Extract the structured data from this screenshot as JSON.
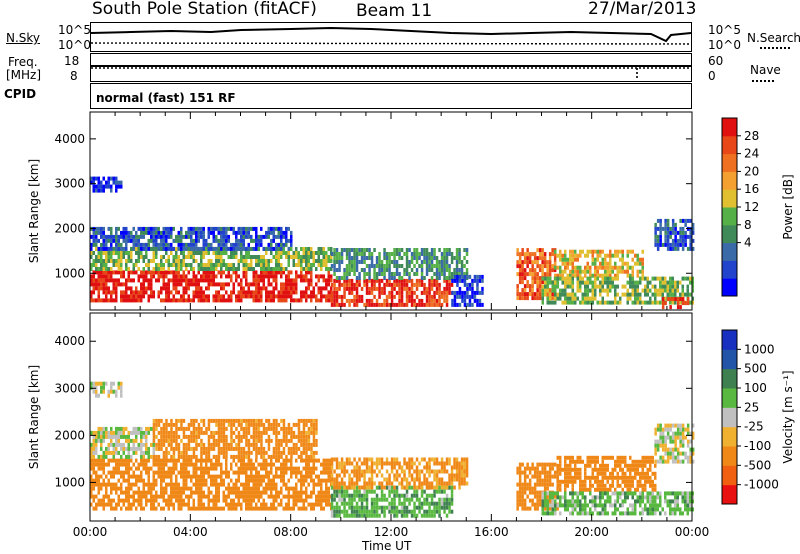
{
  "header": {
    "station": "South Pole Station (fitACF)",
    "beam": "Beam 11",
    "date": "27/Mar/2013"
  },
  "summary_panels": {
    "nsky_label": "N.Sky",
    "nsky_ticks": [
      "10^5",
      "10^0"
    ],
    "nsearch_label": "N.Search",
    "nsearch_ticks": [
      "10^5",
      "10^0"
    ],
    "freq_label_1": "Freq.",
    "freq_label_2": "[MHz]",
    "freq_ticks": [
      "18",
      "8"
    ],
    "nave_label": "Nave",
    "nave_ticks": [
      "60",
      "0"
    ],
    "cpid_label": "CPID",
    "cpid_value": "normal (fast) 151 RF"
  },
  "x_axis": {
    "label": "Time UT",
    "ticks": [
      "00:00",
      "04:00",
      "08:00",
      "12:00",
      "16:00",
      "20:00",
      "00:00"
    ]
  },
  "chart_data": [
    {
      "type": "heatmap",
      "quantity": "power",
      "ylabel": "Slant Range [km]",
      "yticks": [
        1000,
        2000,
        3000,
        4000
      ],
      "ylim": [
        180,
        4600
      ],
      "xlim_hours": [
        0,
        24
      ],
      "colorbar": {
        "label": "Power [dB]",
        "ticks": [
          "28",
          "24",
          "20",
          "16",
          "12",
          "8",
          "4"
        ],
        "colors": [
          "#0000ff",
          "#2244cc",
          "#3b6aa8",
          "#3f8a58",
          "#56b048",
          "#e0c030",
          "#f4a030",
          "#ee7020",
          "#e84818",
          "#e01010"
        ]
      },
      "regions": [
        {
          "t": [
            0.0,
            9.6
          ],
          "r": [
            350,
            1050
          ],
          "level": 0.95
        },
        {
          "t": [
            0.0,
            9.6
          ],
          "r": [
            1050,
            1500
          ],
          "level": 0.45
        },
        {
          "t": [
            0.0,
            8.0
          ],
          "r": [
            1500,
            2000
          ],
          "level": 0.2
        },
        {
          "t": [
            0.0,
            1.2
          ],
          "r": [
            2800,
            3100
          ],
          "level": 0.1
        },
        {
          "t": [
            9.6,
            14.4
          ],
          "r": [
            250,
            850
          ],
          "level": 0.9
        },
        {
          "t": [
            9.6,
            15.0
          ],
          "r": [
            850,
            1500
          ],
          "level": 0.35
        },
        {
          "t": [
            14.4,
            15.6
          ],
          "r": [
            250,
            900
          ],
          "level": 0.12
        },
        {
          "t": [
            17.0,
            18.5
          ],
          "r": [
            400,
            1500
          ],
          "level": 0.8
        },
        {
          "t": [
            18.5,
            22.0
          ],
          "r": [
            900,
            1500
          ],
          "level": 0.6
        },
        {
          "t": [
            18.0,
            24.0
          ],
          "r": [
            300,
            900
          ],
          "level": 0.45
        },
        {
          "t": [
            22.5,
            24.0
          ],
          "r": [
            1500,
            2200
          ],
          "level": 0.2
        },
        {
          "t": [
            22.8,
            23.8
          ],
          "r": [
            200,
            450
          ],
          "level": 0.95
        }
      ]
    },
    {
      "type": "heatmap",
      "quantity": "velocity",
      "ylabel": "Slant Range [km]",
      "yticks": [
        1000,
        2000,
        3000,
        4000
      ],
      "ylim": [
        180,
        4600
      ],
      "xlim_hours": [
        0,
        24
      ],
      "colorbar": {
        "label": "Velocity [m s⁻¹]",
        "ticks": [
          "1000",
          "500",
          "100",
          "25",
          "-25",
          "-100",
          "-500",
          "-1000"
        ],
        "colors": [
          "#e81010",
          "#f06010",
          "#f08818",
          "#f0b030",
          "#c0c0c0",
          "#58b840",
          "#3f8050",
          "#2255a8",
          "#1830c0"
        ]
      },
      "regions": [
        {
          "t": [
            0.0,
            9.6
          ],
          "r": [
            400,
            1450
          ],
          "value": -200
        },
        {
          "t": [
            0.0,
            2.5
          ],
          "r": [
            1500,
            2100
          ],
          "value": 0
        },
        {
          "t": [
            0.0,
            1.2
          ],
          "r": [
            2800,
            3100
          ],
          "value": 0
        },
        {
          "t": [
            2.5,
            9.0
          ],
          "r": [
            1500,
            2300
          ],
          "value": -150
        },
        {
          "t": [
            9.6,
            14.4
          ],
          "r": [
            250,
            850
          ],
          "value": 80
        },
        {
          "t": [
            9.6,
            15.0
          ],
          "r": [
            850,
            1500
          ],
          "value": -120
        },
        {
          "t": [
            17.0,
            18.6
          ],
          "r": [
            400,
            1400
          ],
          "value": -300
        },
        {
          "t": [
            18.6,
            22.5
          ],
          "r": [
            800,
            1500
          ],
          "value": -250
        },
        {
          "t": [
            18.0,
            24.0
          ],
          "r": [
            300,
            800
          ],
          "value": 60
        },
        {
          "t": [
            22.5,
            24.0
          ],
          "r": [
            1400,
            2200
          ],
          "value": 0
        }
      ]
    }
  ]
}
